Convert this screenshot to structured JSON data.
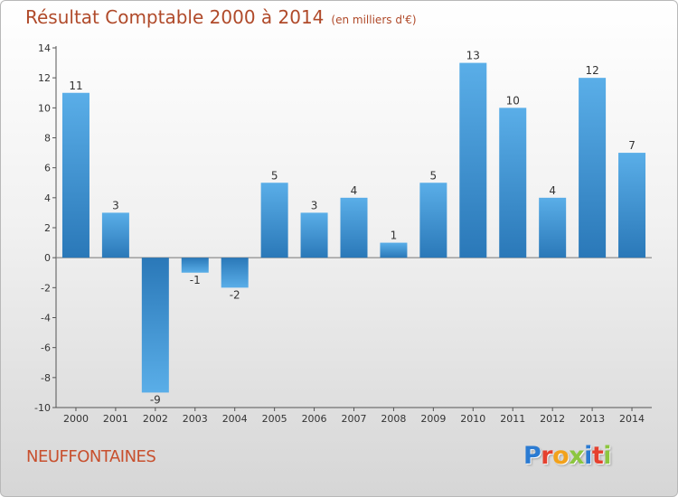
{
  "header": {
    "title": "Résultat Comptable 2000 à 2014",
    "unit": "(en milliers d'€)"
  },
  "footer": {
    "commune": "NEUFFONTAINES",
    "logo_letters": [
      "P",
      "r",
      "o",
      "x",
      "i",
      "t",
      "i"
    ],
    "logo_colors": [
      "#2b7bd2",
      "#e5412f",
      "#f2a21c",
      "#8cc63f",
      "#2b7bd2",
      "#e5412f",
      "#8cc63f"
    ]
  },
  "chart_data": {
    "type": "bar",
    "title": "Résultat Comptable 2000 à 2014",
    "subtitle": "(en milliers d'€)",
    "xlabel": "",
    "ylabel": "",
    "categories": [
      "2000",
      "2001",
      "2002",
      "2003",
      "2004",
      "2005",
      "2006",
      "2007",
      "2008",
      "2009",
      "2010",
      "2011",
      "2012",
      "2013",
      "2014"
    ],
    "values": [
      11,
      3,
      -9,
      -1,
      -2,
      5,
      3,
      4,
      1,
      5,
      13,
      10,
      4,
      12,
      7
    ],
    "data_labels": [
      "11",
      "3",
      "-9",
      "-1",
      "-2",
      "5",
      "3",
      "4",
      "1",
      "5",
      "13",
      "10",
      "4",
      "12",
      "7"
    ],
    "yticks": [
      "-10",
      "-8",
      "-6",
      "-4",
      "-2",
      "0",
      "2",
      "4",
      "6",
      "8",
      "10",
      "12",
      "14"
    ],
    "ylim": [
      -10,
      14
    ],
    "grid": false,
    "legend": "none",
    "bar_color_light": "#5aaee8",
    "bar_color_dark": "#2a78b8"
  }
}
